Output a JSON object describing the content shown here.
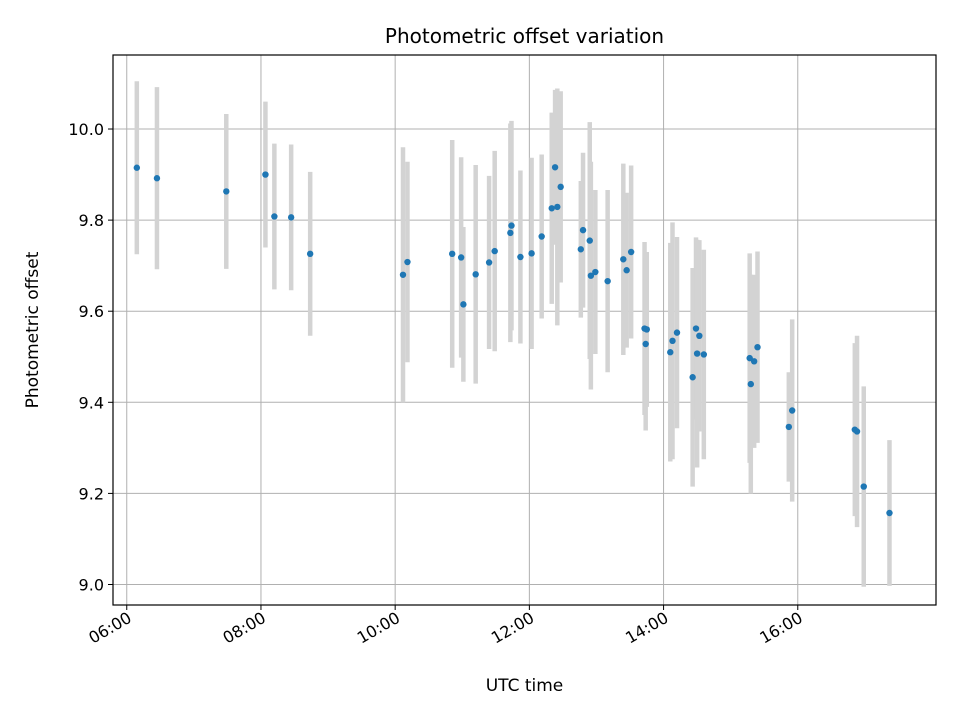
{
  "chart_data": {
    "type": "scatter",
    "title": "Photometric offset variation",
    "xlabel": "UTC time",
    "ylabel": "Photometric offset",
    "x_tick_labels": [
      "06:00",
      "08:00",
      "10:00",
      "12:00",
      "14:00",
      "16:00"
    ],
    "y_tick_labels": [
      "9.0",
      "9.2",
      "9.4",
      "9.6",
      "9.8",
      "10.0"
    ],
    "grid": true,
    "colors": {
      "point": "#1f77b4",
      "errorbar": "#d3d3d3",
      "grid": "#b0b0b0"
    },
    "series": [
      {
        "x": [
          "06:09",
          "06:27",
          "07:29",
          "08:04",
          "08:12",
          "08:27",
          "08:44",
          "10:07",
          "10:11",
          "10:51",
          "10:59",
          "11:01",
          "11:12",
          "11:24",
          "11:29",
          "11:43",
          "11:44",
          "11:52",
          "12:02",
          "12:11",
          "12:20",
          "12:23",
          "12:25",
          "12:28",
          "12:46",
          "12:48",
          "12:54",
          "12:55",
          "12:59",
          "13:10",
          "13:24",
          "13:27",
          "13:31",
          "13:43",
          "13:44",
          "13:45",
          "14:06",
          "14:08",
          "14:12",
          "14:26",
          "14:29",
          "14:30",
          "14:32",
          "14:36",
          "15:17",
          "15:18",
          "15:21",
          "15:24",
          "15:52",
          "15:55",
          "16:51",
          "16:53",
          "16:59",
          "17:22"
        ],
        "y": [
          9.915,
          9.892,
          9.863,
          9.9,
          9.808,
          9.806,
          9.726,
          9.68,
          9.708,
          9.726,
          9.718,
          9.615,
          9.681,
          9.707,
          9.732,
          9.772,
          9.788,
          9.719,
          9.727,
          9.764,
          9.826,
          9.916,
          9.829,
          9.873,
          9.736,
          9.778,
          9.755,
          9.678,
          9.686,
          9.666,
          9.714,
          9.69,
          9.73,
          9.562,
          9.528,
          9.56,
          9.51,
          9.535,
          9.553,
          9.455,
          9.562,
          9.507,
          9.546,
          9.505,
          9.497,
          9.44,
          9.49,
          9.521,
          9.346,
          9.382,
          9.34,
          9.336,
          9.215,
          9.157
        ],
        "err": [
          0.19,
          0.2,
          0.17,
          0.16,
          0.16,
          0.16,
          0.18,
          0.28,
          0.22,
          0.25,
          0.22,
          0.17,
          0.24,
          0.19,
          0.22,
          0.24,
          0.23,
          0.19,
          0.21,
          0.18,
          0.21,
          0.17,
          0.26,
          0.21,
          0.15,
          0.17,
          0.26,
          0.25,
          0.18,
          0.2,
          0.21,
          0.17,
          0.19,
          0.19,
          0.19,
          0.17,
          0.24,
          0.26,
          0.21,
          0.24,
          0.2,
          0.25,
          0.21,
          0.23,
          0.23,
          0.24,
          0.19,
          0.21,
          0.12,
          0.2,
          0.19,
          0.21,
          0.22,
          0.16
        ]
      }
    ]
  }
}
